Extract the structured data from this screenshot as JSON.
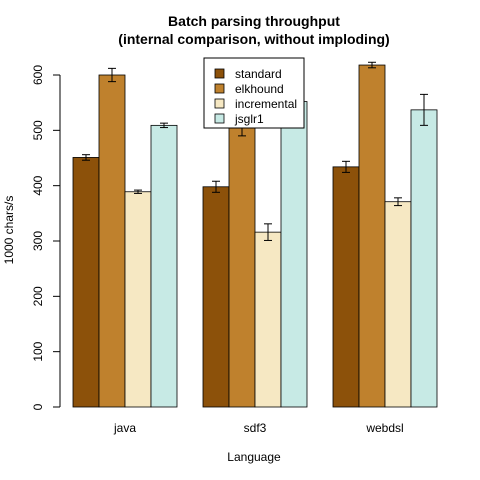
{
  "chart_data": {
    "type": "bar",
    "title": "Batch parsing throughput",
    "subtitle": "(internal comparison, without imploding)",
    "xlabel": "Language",
    "ylabel": "1000 chars/s",
    "categories": [
      "java",
      "sdf3",
      "webdsl"
    ],
    "ylim": [
      0,
      600
    ],
    "yticks": [
      0,
      100,
      200,
      300,
      400,
      500,
      600
    ],
    "grid": false,
    "legend_position": "top-center",
    "series": [
      {
        "name": "standard",
        "color": "#8c510a",
        "values": [
          451,
          398,
          434
        ],
        "errors": [
          5,
          10,
          10
        ]
      },
      {
        "name": "elkhound",
        "color": "#bf812d",
        "values": [
          600,
          515,
          618
        ],
        "errors": [
          12,
          25,
          5
        ]
      },
      {
        "name": "incremental",
        "color": "#f6e8c3",
        "values": [
          389,
          316,
          371
        ],
        "errors": [
          3,
          15,
          7
        ]
      },
      {
        "name": "jsglr1",
        "color": "#c7eae5",
        "values": [
          509,
          552,
          537
        ],
        "errors": [
          4,
          12,
          28
        ]
      }
    ]
  }
}
